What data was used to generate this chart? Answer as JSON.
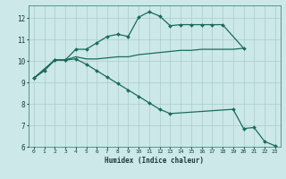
{
  "background_color": "#cce8e8",
  "grid_color": "#aacccc",
  "line_color": "#1a6b5a",
  "xlabel": "Humidex (Indice chaleur)",
  "xlim": [
    -0.5,
    23.5
  ],
  "ylim": [
    6,
    12.6
  ],
  "yticks": [
    6,
    7,
    8,
    9,
    10,
    11,
    12
  ],
  "xticks": [
    0,
    1,
    2,
    3,
    4,
    5,
    6,
    7,
    8,
    9,
    10,
    11,
    12,
    13,
    14,
    15,
    16,
    17,
    18,
    19,
    20,
    21,
    22,
    23
  ],
  "series1_x": [
    0,
    1,
    2,
    3,
    4,
    5,
    6,
    7,
    8,
    9,
    10,
    11,
    12,
    13,
    14,
    15,
    16,
    17,
    18,
    20
  ],
  "series1_y": [
    9.2,
    9.55,
    10.05,
    10.05,
    10.55,
    10.55,
    10.85,
    11.15,
    11.25,
    11.15,
    12.05,
    12.3,
    12.1,
    11.65,
    11.7,
    11.7,
    11.7,
    11.7,
    11.7,
    10.6
  ],
  "series2_x": [
    0,
    2,
    3,
    4,
    5,
    6,
    7,
    8,
    9,
    10,
    11,
    12,
    13,
    14,
    15,
    16,
    17,
    18,
    19,
    20
  ],
  "series2_y": [
    9.2,
    10.05,
    10.05,
    10.2,
    10.1,
    10.1,
    10.15,
    10.2,
    10.2,
    10.3,
    10.35,
    10.4,
    10.45,
    10.5,
    10.5,
    10.55,
    10.55,
    10.55,
    10.55,
    10.6
  ],
  "series3_x": [
    0,
    2,
    3,
    4,
    5,
    6,
    7,
    8,
    9,
    10,
    11,
    12,
    13,
    19,
    20,
    21,
    22,
    23
  ],
  "series3_y": [
    9.2,
    10.05,
    10.05,
    10.1,
    9.85,
    9.55,
    9.25,
    8.95,
    8.65,
    8.35,
    8.05,
    7.75,
    7.55,
    7.75,
    6.85,
    6.9,
    6.25,
    6.05
  ]
}
